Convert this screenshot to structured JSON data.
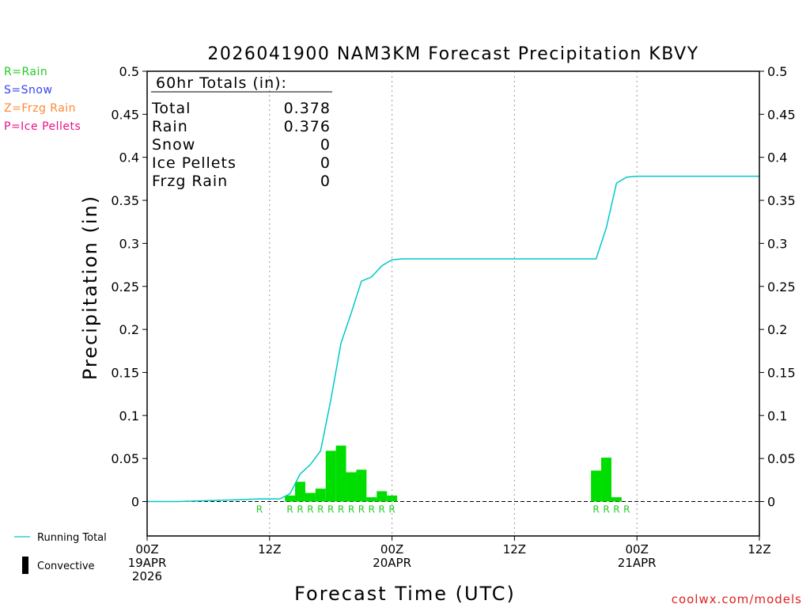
{
  "chart_data": {
    "type": "bar",
    "title": "2026041900 NAM3KM Forecast Precipitation KBVY",
    "xlabel": "Forecast Time (UTC)",
    "ylabel": "Precipitation (in)",
    "ylim": [
      -0.04,
      0.5
    ],
    "xlim_hours": [
      0,
      60
    ],
    "y_ticks": [
      0,
      0.05,
      0.1,
      0.15,
      0.2,
      0.25,
      0.3,
      0.35,
      0.4,
      0.45,
      0.5
    ],
    "y_tick_labels": [
      "0",
      "0.05",
      "0.1",
      "0.15",
      "0.2",
      "0.25",
      "0.3",
      "0.35",
      "0.4",
      "0.45",
      "0.5"
    ],
    "x_ticks": [
      {
        "hour": 0,
        "lines": [
          "00Z",
          "19APR",
          "2026"
        ]
      },
      {
        "hour": 12,
        "lines": [
          "12Z"
        ]
      },
      {
        "hour": 24,
        "lines": [
          "00Z",
          "20APR"
        ]
      },
      {
        "hour": 36,
        "lines": [
          "12Z"
        ]
      },
      {
        "hour": 48,
        "lines": [
          "00Z",
          "21APR"
        ]
      },
      {
        "hour": 60,
        "lines": [
          "12Z"
        ]
      }
    ],
    "vertical_gridlines_hours": [
      12,
      24,
      36,
      48
    ],
    "grid": "vertical dotted",
    "bar_hours": [
      14,
      15,
      16,
      17,
      18,
      19,
      20,
      21,
      22,
      23,
      24,
      44,
      45,
      46
    ],
    "bar_values": [
      0.007,
      0.023,
      0.01,
      0.015,
      0.059,
      0.065,
      0.034,
      0.037,
      0.005,
      0.012,
      0.007,
      0.036,
      0.051,
      0.005
    ],
    "bar_color": "#00dd00",
    "precip_type_markers": [
      {
        "hour": 11,
        "label": "R"
      },
      {
        "hour": 14,
        "label": "R"
      },
      {
        "hour": 15,
        "label": "R"
      },
      {
        "hour": 16,
        "label": "R"
      },
      {
        "hour": 17,
        "label": "R"
      },
      {
        "hour": 18,
        "label": "R"
      },
      {
        "hour": 19,
        "label": "R"
      },
      {
        "hour": 20,
        "label": "R"
      },
      {
        "hour": 21,
        "label": "R"
      },
      {
        "hour": 22,
        "label": "R"
      },
      {
        "hour": 23,
        "label": "R"
      },
      {
        "hour": 24,
        "label": "R"
      },
      {
        "hour": 44,
        "label": "R"
      },
      {
        "hour": 45,
        "label": "R"
      },
      {
        "hour": 46,
        "label": "R"
      },
      {
        "hour": 47,
        "label": "R"
      }
    ],
    "series": [
      {
        "name": "Running Total",
        "color": "#00c8c8",
        "x": [
          0,
          3,
          6,
          9,
          11,
          13,
          14,
          15,
          16,
          17,
          18,
          19,
          20,
          21,
          22,
          23,
          24,
          25,
          26,
          27,
          28,
          29,
          30,
          31,
          32,
          33,
          34,
          35,
          36,
          37,
          38,
          39,
          40,
          41,
          42,
          43,
          44,
          45,
          46,
          47,
          48,
          60
        ],
        "y": [
          0,
          0,
          0.001,
          0.002,
          0.003,
          0.003,
          0.009,
          0.032,
          0.043,
          0.059,
          0.118,
          0.184,
          0.219,
          0.256,
          0.261,
          0.274,
          0.281,
          0.282,
          0.282,
          0.282,
          0.282,
          0.282,
          0.282,
          0.282,
          0.282,
          0.282,
          0.282,
          0.282,
          0.282,
          0.282,
          0.282,
          0.282,
          0.282,
          0.282,
          0.282,
          0.282,
          0.282,
          0.318,
          0.37,
          0.377,
          0.378,
          0.378
        ]
      }
    ],
    "totals_box": {
      "title": "60hr Totals (in):",
      "rows": [
        {
          "label": "Total",
          "value": "0.378"
        },
        {
          "label": "Rain",
          "value": "0.376"
        },
        {
          "label": "Snow",
          "value": "0"
        },
        {
          "label": "Ice Pellets",
          "value": "0"
        },
        {
          "label": "Frzg Rain",
          "value": "0"
        }
      ]
    },
    "type_legend": [
      {
        "text": "R=Rain",
        "color": "#22cc22"
      },
      {
        "text": "S=Snow",
        "color": "#3344ee"
      },
      {
        "text": "Z=Frzg Rain",
        "color": "#ff8833"
      },
      {
        "text": "P=Ice Pellets",
        "color": "#ee1188"
      }
    ],
    "series_legend": [
      {
        "text": "Running Total",
        "kind": "line",
        "color": "#00c8c8"
      },
      {
        "text": "Convective",
        "kind": "bar",
        "color": "#000000"
      }
    ],
    "credit": "coolwx.com/models"
  }
}
